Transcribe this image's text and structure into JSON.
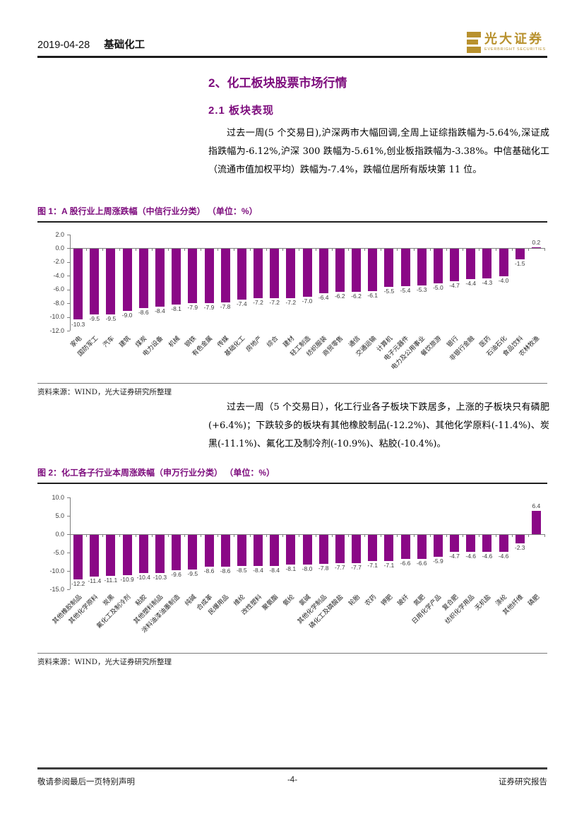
{
  "page": {
    "header": {
      "date": "2019-04-28",
      "category": "基础化工",
      "logo_title": "光大证券",
      "logo_subtitle": "EVERBRIGHT SECURITIES"
    },
    "section_title": "2、化工板块股票市场行情",
    "subsection_title": "2.1  板块表现",
    "paragraph1": "过去一周(5 个交易日),沪深两市大幅回调,全周上证综指跌幅为-5.64%,深证成指跌幅为-6.12%,沪深 300 跌幅为-5.61%,创业板指跌幅为-3.38%。中信基础化工（流通市值加权平均）跌幅为-7.4%，跌幅位居所有版块第 11 位。",
    "paragraph2": "过去一周（5 个交易日），化工行业各子板块下跌居多，上涨的子板块只有磷肥(+6.4%)；下跌较多的板块有其他橡胶制品(-12.2%)、其他化学原料(-11.4%)、炭黑(-11.1%)、氟化工及制冷剂(-10.9%)、粘胶(-10.4%)。",
    "figure1_caption": "图 1：A 股行业上周涨跌幅（中信行业分类） （单位：%）",
    "figure2_caption": "图 2：化工各子行业本周涨跌幅（申万行业分类） （单位：%）",
    "source_note": "资料来源：WIND，光大证券研究所整理",
    "footer": {
      "left": "敬请参阅最后一页特别声明",
      "center": "-4-",
      "right": "证券研究报告"
    },
    "colors": {
      "accent_purple": "#7d0c7d",
      "bar_purple": "#8a0886",
      "logo_gold": "#b8912e"
    }
  },
  "chart_data": [
    {
      "type": "bar",
      "title": "A股行业上周涨跌幅（中信行业分类）",
      "unit": "%",
      "categories": [
        "家电",
        "国防军工",
        "汽车",
        "建筑",
        "煤炭",
        "电力设备",
        "机械",
        "钢铁",
        "有色金属",
        "传媒",
        "基础化工",
        "房地产",
        "综合",
        "建材",
        "轻工制造",
        "纺织服装",
        "商贸零售",
        "通信",
        "交通运输",
        "计算机",
        "电子元器件",
        "电力及公用事业",
        "餐饮旅游",
        "银行",
        "非银行金融",
        "医药",
        "石油石化",
        "食品饮料",
        "农林牧渔"
      ],
      "values": [
        -10.3,
        -9.5,
        -9.5,
        -9.0,
        -8.6,
        -8.4,
        -8.1,
        -7.9,
        -7.9,
        -7.8,
        -7.4,
        -7.2,
        -7.2,
        -7.2,
        -7.0,
        -6.4,
        -6.2,
        -6.2,
        -6.1,
        -5.5,
        -5.4,
        -5.3,
        -5.0,
        -4.7,
        -4.4,
        -4.3,
        -4.0,
        -1.5,
        0.2
      ],
      "ylim": [
        -12,
        2
      ],
      "yticks": [
        2,
        0,
        -2,
        -4,
        -6,
        -8,
        -10,
        -12
      ],
      "bar_color": "#8a0886",
      "grid": false,
      "legend": "none",
      "value_labels": true
    },
    {
      "type": "bar",
      "title": "化工各子行业本周涨跌幅（申万行业分类）",
      "unit": "%",
      "categories": [
        "其他橡胶制品",
        "其他化学原料",
        "炭黑",
        "氟化工及制冷剂",
        "粘胶",
        "其他塑料制品",
        "涂料油漆油墨制造",
        "纯碱",
        "合成革",
        "民爆用品",
        "维纶",
        "改性塑料",
        "聚氨酯",
        "氨纶",
        "氯碱",
        "其他化学制品",
        "磷化工及磷酸盐",
        "轮胎",
        "农药",
        "钾肥",
        "玻纤",
        "氮肥",
        "日用化学产品",
        "复合肥",
        "纺织化学用品",
        "无机盐",
        "涤纶",
        "其他纤维",
        "磷肥"
      ],
      "values": [
        -12.2,
        -11.4,
        -11.1,
        -10.9,
        -10.4,
        -10.3,
        -9.6,
        -9.5,
        -8.6,
        -8.6,
        -8.5,
        -8.4,
        -8.4,
        -8.1,
        -8.0,
        -7.8,
        -7.7,
        -7.7,
        -7.1,
        -7.1,
        -6.6,
        -6.6,
        -5.9,
        -4.7,
        -4.6,
        -4.6,
        -4.6,
        -2.3,
        6.4
      ],
      "ylim": [
        -15,
        10
      ],
      "yticks": [
        10,
        5,
        0,
        -5,
        -10,
        -15
      ],
      "bar_color": "#8a0886",
      "grid": false,
      "legend": "none",
      "value_labels": true
    }
  ]
}
